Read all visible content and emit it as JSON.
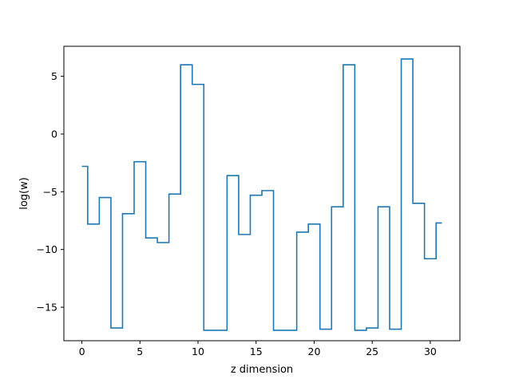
{
  "chart_data": {
    "type": "line",
    "drawstyle": "steps-mid",
    "title": "",
    "xlabel": "z dimension",
    "ylabel": "log(w)",
    "xlim": [
      -1.55,
      32.55
    ],
    "ylim": [
      -17.9,
      7.6
    ],
    "xticks": [
      0,
      5,
      10,
      15,
      20,
      25,
      30
    ],
    "yticks": [
      5,
      0,
      -5,
      -10,
      -15
    ],
    "ytick_labels": [
      "5",
      "0",
      "−5",
      "−10",
      "−15"
    ],
    "grid": false,
    "legend": "none",
    "series": [
      {
        "color": "#1f77b4",
        "x": [
          0,
          1,
          2,
          3,
          4,
          5,
          6,
          7,
          8,
          9,
          10,
          11,
          12,
          13,
          14,
          15,
          16,
          17,
          18,
          19,
          20,
          21,
          22,
          23,
          24,
          25,
          26,
          27,
          28,
          29,
          30,
          31
        ],
        "y": [
          -2.8,
          -7.8,
          -5.5,
          -16.8,
          -6.9,
          -2.4,
          -9.0,
          -9.4,
          -5.2,
          6.0,
          4.3,
          -17.0,
          -17.0,
          -3.6,
          -8.7,
          -5.3,
          -4.9,
          -17.0,
          -17.0,
          -8.5,
          -7.8,
          -16.9,
          -6.3,
          6.0,
          -17.0,
          -16.8,
          -6.3,
          -16.9,
          6.5,
          -6.0,
          -10.8,
          -7.7
        ]
      }
    ]
  }
}
